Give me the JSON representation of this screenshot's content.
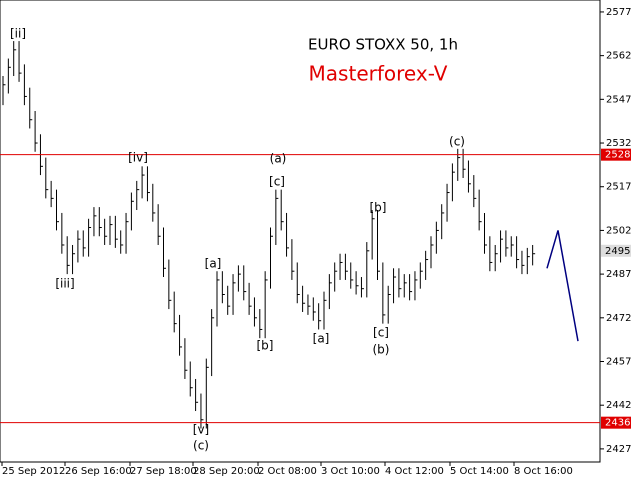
{
  "chart_data": {
    "type": "ohlc",
    "title": "EURO STOXX 50, 1h",
    "subtitle": "Masterforex-V",
    "ylim": [
      2422.5,
      2581.1
    ],
    "yticks": [
      2577,
      2562,
      2547,
      2532,
      2517,
      2502,
      2487,
      2472,
      2457,
      2442,
      2427
    ],
    "xlabels": [
      "25 Sep 2012",
      "26 Sep 16:00",
      "27 Sep 18:00",
      "28 Sep 20:00",
      "2 Oct 08:00",
      "3 Oct 10:00",
      "4 Oct 12:00",
      "5 Oct 14:00",
      "8 Oct 16:00"
    ],
    "color": "#000000",
    "high": [
      2555,
      2561,
      2567,
      2567,
      2559,
      2551,
      2543,
      2535,
      2527,
      2519,
      2516,
      2508,
      2500,
      2497,
      2502,
      2502,
      2506,
      2510,
      2510,
      2506,
      2507,
      2507,
      2502,
      2508,
      2515,
      2519,
      2524,
      2524,
      2518,
      2511,
      2503,
      2492,
      2481,
      2473,
      2465,
      2457,
      2451,
      2446,
      2458,
      2475,
      2488,
      2488,
      2483,
      2487,
      2490,
      2490,
      2484,
      2479,
      2475,
      2488,
      2503,
      2516,
      2516,
      2508,
      2499,
      2491,
      2483,
      2480,
      2479,
      2477,
      2481,
      2487,
      2491,
      2494,
      2494,
      2491,
      2488,
      2486,
      2498,
      2509,
      2509,
      2491,
      2483,
      2489,
      2489,
      2487,
      2487,
      2488,
      2491,
      2495,
      2500,
      2505,
      2511,
      2518,
      2525,
      2530,
      2530,
      2526,
      2521,
      2516,
      2508,
      2500,
      2497,
      2502,
      2502,
      2500,
      2500,
      2495,
      2496,
      2497
    ],
    "low": [
      2545,
      2549,
      2555,
      2553,
      2545,
      2537,
      2529,
      2521,
      2513,
      2510,
      2502,
      2494,
      2487,
      2487,
      2491,
      2493,
      2493,
      2500,
      2500,
      2497,
      2497,
      2496,
      2494,
      2494,
      2502,
      2509,
      2513,
      2512,
      2505,
      2497,
      2486,
      2475,
      2467,
      2459,
      2451,
      2445,
      2440,
      2434,
      2434,
      2452,
      2469,
      2477,
      2473,
      2473,
      2481,
      2478,
      2473,
      2469,
      2465,
      2465,
      2482,
      2497,
      2502,
      2493,
      2485,
      2477,
      2474,
      2473,
      2471,
      2468,
      2468,
      2475,
      2481,
      2485,
      2485,
      2482,
      2480,
      2479,
      2479,
      2492,
      2485,
      2470,
      2470,
      2477,
      2479,
      2479,
      2478,
      2478,
      2482,
      2485,
      2489,
      2494,
      2499,
      2505,
      2512,
      2519,
      2520,
      2515,
      2510,
      2502,
      2494,
      2488,
      2488,
      2491,
      2493,
      2493,
      2489,
      2487,
      2487,
      2490
    ],
    "close": [
      2552,
      2558,
      2564,
      2556,
      2548,
      2540,
      2532,
      2524,
      2516,
      2513,
      2505,
      2497,
      2490,
      2494,
      2499,
      2496,
      2503,
      2507,
      2503,
      2500,
      2504,
      2499,
      2497,
      2505,
      2512,
      2516,
      2521,
      2515,
      2508,
      2500,
      2489,
      2478,
      2470,
      2462,
      2454,
      2448,
      2443,
      2437,
      2455,
      2472,
      2485,
      2480,
      2476,
      2484,
      2487,
      2481,
      2476,
      2472,
      2468,
      2485,
      2500,
      2513,
      2505,
      2496,
      2488,
      2480,
      2477,
      2476,
      2474,
      2471,
      2478,
      2484,
      2488,
      2491,
      2488,
      2485,
      2483,
      2482,
      2495,
      2506,
      2488,
      2473,
      2480,
      2486,
      2482,
      2484,
      2481,
      2485,
      2488,
      2492,
      2497,
      2502,
      2508,
      2515,
      2522,
      2527,
      2523,
      2518,
      2513,
      2505,
      2497,
      2491,
      2494,
      2499,
      2496,
      2497,
      2492,
      2490,
      2493,
      2494
    ],
    "hlines": [
      2528,
      2436
    ],
    "hline_color": "#e00000",
    "current_price": 2495,
    "forecast": [
      2489,
      2502,
      2464
    ],
    "forecast_color": "#000080",
    "annotations": [
      "[ii]",
      "[iii]",
      "[iv]",
      "[v]",
      "(c)",
      "[a]",
      "[b]",
      "(a)",
      "[c]",
      "[a]",
      "[b]",
      "[c]",
      "(b)",
      "(c)"
    ]
  }
}
